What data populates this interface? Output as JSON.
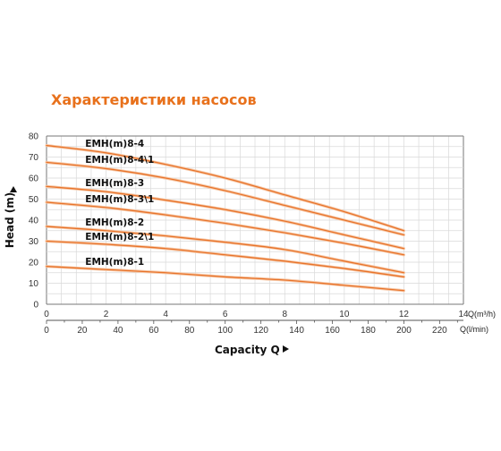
{
  "title": "Характеристики насосов",
  "chart_data": {
    "type": "line",
    "ylabel": "Head (m)",
    "xlabel": "Capacity Q",
    "x_units": "Q(m³/h)",
    "x2_units": "Q(l/min)",
    "xlim": [
      0,
      14
    ],
    "ylim": [
      0,
      80
    ],
    "x_ticks": [
      "0",
      "2",
      "4",
      "6",
      "8",
      "10",
      "12",
      "14"
    ],
    "x2_ticks": [
      "0",
      "20",
      "40",
      "60",
      "80",
      "100",
      "120",
      "140",
      "160",
      "180",
      "200",
      "220"
    ],
    "y_ticks": [
      "0",
      "10",
      "20",
      "30",
      "40",
      "50",
      "60",
      "70",
      "80"
    ],
    "grid": true,
    "line_color": "#e8732a",
    "series": [
      {
        "name": "EMH(m)8-4",
        "x": [
          0,
          2,
          4,
          6,
          8,
          10,
          12
        ],
        "values": [
          75.5,
          72,
          66.5,
          60,
          52,
          44,
          35
        ]
      },
      {
        "name": "EMH(m)8-4\\1",
        "x": [
          0,
          2,
          4,
          6,
          8,
          10,
          12
        ],
        "values": [
          67.5,
          64.5,
          60,
          54,
          47,
          40,
          33
        ]
      },
      {
        "name": "EMH(m)8-3",
        "x": [
          0,
          2,
          4,
          6,
          8,
          10,
          12
        ],
        "values": [
          56,
          53.5,
          49.5,
          45,
          39.5,
          33,
          26.5
        ]
      },
      {
        "name": "EMH(m)8-3\\1",
        "x": [
          0,
          2,
          4,
          6,
          8,
          10,
          12
        ],
        "values": [
          48.5,
          46,
          42.5,
          38.5,
          34,
          29,
          23.5
        ]
      },
      {
        "name": "EMH(m)8-2",
        "x": [
          0,
          2,
          4,
          6,
          8,
          10,
          12
        ],
        "values": [
          37,
          35,
          32.5,
          29.5,
          26,
          20.5,
          15
        ]
      },
      {
        "name": "EMH(m)8-2\\1",
        "x": [
          0,
          2,
          4,
          6,
          8,
          10,
          12
        ],
        "values": [
          30,
          28.5,
          26.5,
          23.5,
          20.5,
          17,
          13
        ]
      },
      {
        "name": "EMH(m)8-1",
        "x": [
          0,
          2,
          4,
          6,
          8,
          10,
          12
        ],
        "values": [
          18,
          16.5,
          15,
          13,
          11.5,
          9,
          6.5
        ]
      }
    ]
  }
}
